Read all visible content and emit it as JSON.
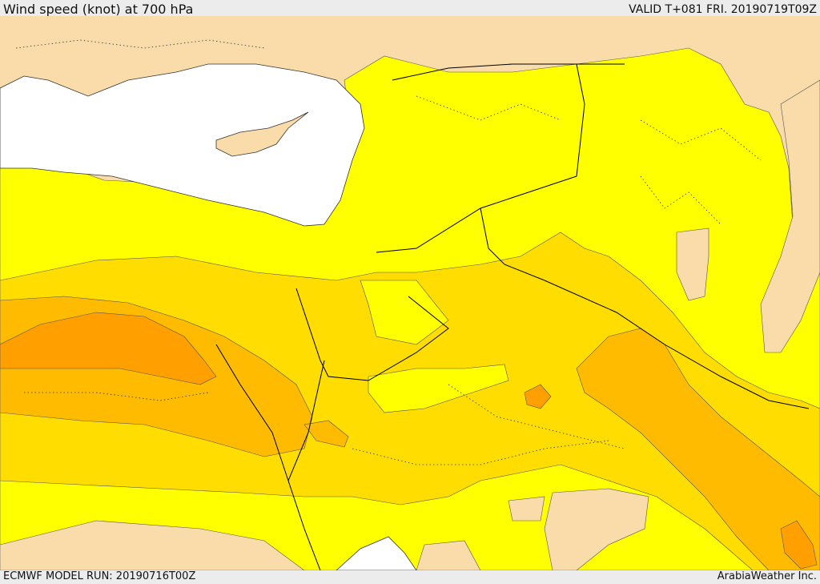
{
  "header": {
    "title": "Wind speed (knot) at 700 hPa",
    "valid": "VALID T+081 FRI. 20190719T09Z"
  },
  "footer": {
    "model_run": "ECMWF MODEL RUN: 20190716T00Z",
    "credit": "ArabiaWeather Inc."
  },
  "colors": {
    "land": "#fadcaa",
    "sea": "#ffffff",
    "band_1": "#ffff00",
    "band_2": "#ffdd00",
    "band_3": "#ffbb00",
    "band_4": "#ff9f00",
    "borders": "#000000"
  }
}
